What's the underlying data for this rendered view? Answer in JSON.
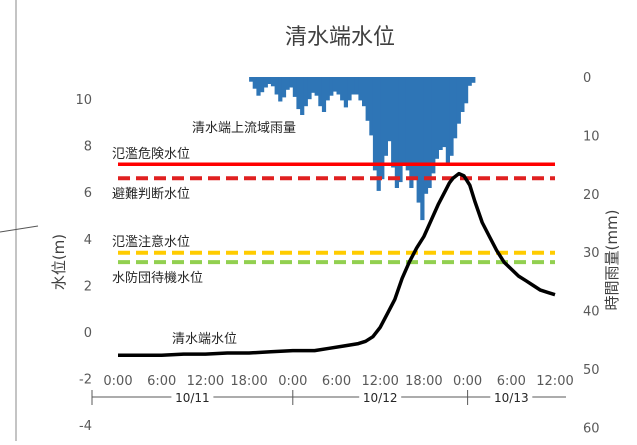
{
  "chart_data": {
    "type": "line",
    "title": "清水端水位",
    "ylabel": "水位(m)",
    "y2label": "時間雨量(mm)",
    "left_axis": {
      "ticks": [
        10,
        8,
        6,
        4,
        2,
        0,
        -2,
        -4
      ],
      "ylim": [
        -4,
        11
      ]
    },
    "right_axis": {
      "ticks": [
        0,
        10,
        20,
        30,
        40,
        50,
        60
      ],
      "ylim": [
        0,
        60
      ],
      "inverted": true
    },
    "x_tick_labels": [
      "0:00",
      "6:00",
      "12:00",
      "18:00",
      "0:00",
      "6:00",
      "12:00",
      "18:00",
      "0:00",
      "6:00",
      "12:00"
    ],
    "x_hours_range": [
      0,
      60
    ],
    "date_labels": [
      "10/11",
      "10/12",
      "10/13"
    ],
    "date_ranges": [
      [
        0,
        24
      ],
      [
        24,
        48
      ],
      [
        48,
        60
      ]
    ],
    "thresholds": [
      {
        "label": "氾濫危険水位",
        "value": 7.2,
        "color": "#ff0000",
        "dash": false
      },
      {
        "label": "避難判断水位",
        "value": 6.6,
        "color": "#e02020",
        "dash": true
      },
      {
        "label": "氾濫注意水位",
        "value": 3.4,
        "color": "#ffcc00",
        "dash": true
      },
      {
        "label": "水防団待機水位",
        "value": 3.0,
        "color": "#92d050",
        "dash": true
      }
    ],
    "water_level_series": {
      "name": "清水端水位",
      "color": "#000000",
      "points": [
        [
          0,
          -1.0
        ],
        [
          3,
          -1.0
        ],
        [
          6,
          -1.0
        ],
        [
          9,
          -0.95
        ],
        [
          12,
          -0.95
        ],
        [
          15,
          -0.9
        ],
        [
          18,
          -0.9
        ],
        [
          21,
          -0.85
        ],
        [
          24,
          -0.8
        ],
        [
          27,
          -0.8
        ],
        [
          29,
          -0.7
        ],
        [
          31,
          -0.6
        ],
        [
          33,
          -0.5
        ],
        [
          34,
          -0.4
        ],
        [
          35,
          -0.2
        ],
        [
          36,
          0.2
        ],
        [
          37,
          0.8
        ],
        [
          38,
          1.4
        ],
        [
          39,
          2.3
        ],
        [
          40,
          3.0
        ],
        [
          41,
          3.6
        ],
        [
          42,
          4.1
        ],
        [
          43,
          4.8
        ],
        [
          44,
          5.5
        ],
        [
          45,
          6.1
        ],
        [
          45.5,
          6.4
        ],
        [
          46,
          6.6
        ],
        [
          46.8,
          6.8
        ],
        [
          47.5,
          6.7
        ],
        [
          48.3,
          6.3
        ],
        [
          49,
          5.6
        ],
        [
          50,
          4.7
        ],
        [
          51,
          4.1
        ],
        [
          52,
          3.5
        ],
        [
          53,
          3.0
        ],
        [
          54,
          2.7
        ],
        [
          55,
          2.4
        ],
        [
          56,
          2.2
        ],
        [
          57,
          2.0
        ],
        [
          58,
          1.8
        ],
        [
          59,
          1.7
        ],
        [
          60,
          1.6
        ]
      ]
    },
    "rain_series": {
      "name": "清水端上流域雨量",
      "color": "#2e75b6",
      "bars": [
        [
          18.0,
          0.8
        ],
        [
          18.5,
          2.0
        ],
        [
          19.0,
          3.2
        ],
        [
          19.5,
          2.6
        ],
        [
          20.0,
          1.8
        ],
        [
          20.5,
          1.2
        ],
        [
          21.0,
          1.6
        ],
        [
          21.5,
          3.0
        ],
        [
          22.0,
          4.2
        ],
        [
          22.5,
          3.5
        ],
        [
          23.0,
          2.2
        ],
        [
          23.5,
          1.8
        ],
        [
          24.0,
          3.4
        ],
        [
          24.5,
          5.5
        ],
        [
          25.0,
          6.5
        ],
        [
          25.5,
          5.0
        ],
        [
          26.0,
          3.8
        ],
        [
          26.5,
          2.7
        ],
        [
          27.0,
          3.2
        ],
        [
          27.5,
          5.0
        ],
        [
          28.0,
          6.0
        ],
        [
          28.5,
          4.0
        ],
        [
          29.0,
          3.2
        ],
        [
          29.5,
          2.5
        ],
        [
          30.0,
          3.0
        ],
        [
          30.5,
          4.0
        ],
        [
          31.0,
          5.2
        ],
        [
          31.5,
          4.0
        ],
        [
          32.0,
          3.0
        ],
        [
          32.5,
          3.0
        ],
        [
          33.0,
          4.0
        ],
        [
          33.5,
          5.0
        ],
        [
          34.0,
          7.5
        ],
        [
          34.5,
          10.0
        ],
        [
          35.0,
          16.0
        ],
        [
          35.5,
          19.5
        ],
        [
          36.0,
          17.5
        ],
        [
          36.5,
          13.5
        ],
        [
          37.0,
          11.0
        ],
        [
          37.5,
          15.5
        ],
        [
          38.0,
          19.0
        ],
        [
          38.5,
          18.0
        ],
        [
          39.0,
          15.0
        ],
        [
          39.5,
          16.0
        ],
        [
          40.0,
          19.0
        ],
        [
          40.5,
          17.5
        ],
        [
          41.0,
          21.5
        ],
        [
          41.5,
          24.5
        ],
        [
          42.0,
          20.0
        ],
        [
          42.5,
          19.0
        ],
        [
          43.0,
          16.5
        ],
        [
          43.5,
          14.0
        ],
        [
          44.0,
          12.5
        ],
        [
          44.5,
          12.0
        ],
        [
          45.0,
          15.0
        ],
        [
          45.5,
          13.5
        ],
        [
          46.0,
          10.5
        ],
        [
          46.5,
          8.0
        ],
        [
          47.0,
          6.0
        ],
        [
          47.5,
          4.5
        ],
        [
          48.0,
          1.5
        ],
        [
          48.5,
          1.0
        ]
      ]
    }
  }
}
